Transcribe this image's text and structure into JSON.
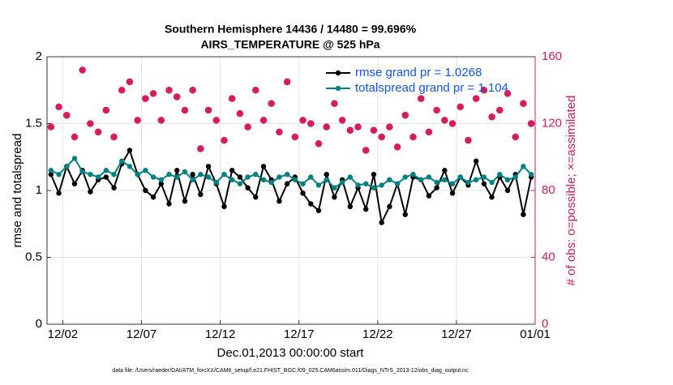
{
  "chart_data": {
    "type": "line",
    "title": "Southern Hemisphere 14436 / 14480 = 99.696%",
    "subtitle": "AIRS_TEMPERATURE @ 525 hPa",
    "xlabel": "Dec.01,2013 00:00:00 start",
    "ylabel": "rmse and totalspread",
    "y2label": "# of obs: o=possible; ×=assimilated",
    "footnote": "data file: /Users/raeder/DAI/ATM_forcXX/CAM6_setup/f.e21.FHIST_BGC.f09_025.CAM6assim.011/Diags_NTrS_2013-12/obs_diag_output.nc",
    "xlim": [
      0,
      31
    ],
    "xticks": [
      {
        "value": 1,
        "label": "12/02"
      },
      {
        "value": 6,
        "label": "12/07"
      },
      {
        "value": 11,
        "label": "12/12"
      },
      {
        "value": 16,
        "label": "12/17"
      },
      {
        "value": 21,
        "label": "12/22"
      },
      {
        "value": 26,
        "label": "12/27"
      },
      {
        "value": 31,
        "label": "01/01"
      }
    ],
    "ylim": [
      0,
      2
    ],
    "yticks": [
      0,
      0.5,
      1,
      1.5,
      2
    ],
    "y2lim": [
      0,
      160
    ],
    "y2ticks": [
      0,
      40,
      80,
      120,
      160
    ],
    "grid": true,
    "legend": "upper right",
    "x": [
      0.25,
      0.75,
      1.25,
      1.75,
      2.25,
      2.75,
      3.25,
      3.75,
      4.25,
      4.75,
      5.25,
      5.75,
      6.25,
      6.75,
      7.25,
      7.75,
      8.25,
      8.75,
      9.25,
      9.75,
      10.25,
      10.75,
      11.25,
      11.75,
      12.25,
      12.75,
      13.25,
      13.75,
      14.25,
      14.75,
      15.25,
      15.75,
      16.25,
      16.75,
      17.25,
      17.75,
      18.25,
      18.75,
      19.25,
      19.75,
      20.25,
      20.75,
      21.25,
      21.75,
      22.25,
      22.75,
      23.25,
      23.75,
      24.25,
      24.75,
      25.25,
      25.75,
      26.25,
      26.75,
      27.25,
      27.75,
      28.25,
      28.75,
      29.25,
      29.75,
      30.25,
      30.75
    ],
    "series": [
      {
        "name": "rmse grand pr = 1.0268",
        "color": "#000000",
        "marker": "dot",
        "values": [
          1.12,
          0.98,
          1.18,
          1.05,
          1.15,
          0.99,
          1.08,
          1.1,
          1.02,
          1.2,
          1.3,
          1.12,
          1.0,
          0.95,
          1.05,
          0.9,
          1.15,
          0.92,
          1.12,
          0.97,
          1.18,
          1.05,
          0.88,
          1.15,
          1.1,
          1.02,
          0.95,
          1.18,
          1.08,
          0.92,
          1.05,
          1.1,
          0.98,
          0.9,
          0.85,
          1.12,
          0.95,
          1.08,
          0.88,
          1.02,
          0.86,
          1.12,
          0.76,
          0.88,
          1.05,
          0.82,
          1.1,
          1.08,
          0.96,
          1.02,
          1.15,
          0.98,
          1.1,
          1.04,
          1.22,
          1.05,
          0.95,
          1.1,
          1.0,
          1.12,
          0.82,
          1.1
        ]
      },
      {
        "name": "totalspread grand pr = 1.104",
        "color": "#008080",
        "marker": "dot",
        "values": [
          1.15,
          1.12,
          1.18,
          1.24,
          1.14,
          1.12,
          1.1,
          1.15,
          1.12,
          1.22,
          1.18,
          1.12,
          1.15,
          1.1,
          1.08,
          1.12,
          1.1,
          1.14,
          1.08,
          1.12,
          1.1,
          1.06,
          1.12,
          1.08,
          1.05,
          1.1,
          1.12,
          1.08,
          1.06,
          1.1,
          1.12,
          1.08,
          1.05,
          1.1,
          1.04,
          1.08,
          1.02,
          1.06,
          1.1,
          1.04,
          1.05,
          1.02,
          1.04,
          1.08,
          1.05,
          1.1,
          1.12,
          1.08,
          1.1,
          1.06,
          1.08,
          1.05,
          1.1,
          1.06,
          1.08,
          1.1,
          1.06,
          1.12,
          1.08,
          1.1,
          1.18,
          1.12
        ]
      },
      {
        "axis": "y2",
        "color": "#d6195b",
        "marker": "circle",
        "values": [
          118,
          130,
          125,
          112,
          152,
          120,
          115,
          128,
          112,
          140,
          145,
          122,
          135,
          138,
          122,
          140,
          136,
          128,
          140,
          105,
          128,
          122,
          110,
          135,
          126,
          118,
          140,
          122,
          132,
          115,
          145,
          112,
          122,
          120,
          108,
          118,
          132,
          122,
          116,
          118,
          104,
          116,
          112,
          118,
          106,
          125,
          112,
          135,
          115,
          128,
          122,
          120,
          130,
          110,
          135,
          140,
          124,
          128,
          138,
          112,
          132,
          120
        ]
      },
      {
        "axis": "y2",
        "color": "#d6195b",
        "marker": "star",
        "values": [
          118,
          130,
          125,
          112,
          152,
          120,
          115,
          128,
          112,
          140,
          145,
          122,
          135,
          138,
          122,
          140,
          136,
          128,
          140,
          105,
          128,
          122,
          110,
          135,
          126,
          118,
          140,
          122,
          132,
          115,
          145,
          112,
          122,
          120,
          108,
          118,
          132,
          122,
          116,
          118,
          104,
          116,
          112,
          118,
          106,
          125,
          112,
          135,
          115,
          128,
          122,
          120,
          130,
          110,
          135,
          140,
          124,
          128,
          138,
          112,
          132,
          120
        ]
      }
    ]
  }
}
